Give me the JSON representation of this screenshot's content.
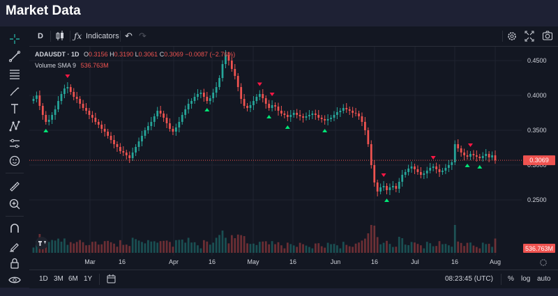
{
  "page": {
    "title": "Market Data"
  },
  "toolbar": {
    "interval": "D",
    "indicators_label": "Indicators"
  },
  "legend": {
    "symbol": "ADAUSDT · 1D",
    "open_label": "O",
    "open": "0.3156",
    "high_label": "H",
    "high": "0.3190",
    "low_label": "L",
    "low": "0.3061",
    "close_label": "C",
    "close": "0.3069",
    "change": "−0.0087 (−2.76%)",
    "volume_label": "Volume SMA 9",
    "volume_value": "536.763M"
  },
  "price_axis": {
    "labels": [
      "0.4500",
      "0.4000",
      "0.3500",
      "0.3000",
      "0.2500"
    ],
    "last_price": "0.3069",
    "volume_badge": "536.763M"
  },
  "time_axis": {
    "labels": [
      "Mar",
      "16",
      "Apr",
      "16",
      "May",
      "16",
      "Jun",
      "16",
      "Jul",
      "16",
      "Aug"
    ]
  },
  "bottom_bar": {
    "ranges": [
      "1D",
      "3M",
      "6M",
      "1Y"
    ],
    "clock": "08:23:45 (UTC)",
    "percent": "%",
    "log": "log",
    "auto": "auto"
  },
  "colors": {
    "up": "#26a69a",
    "down": "#ef5350",
    "buy_signal": "#00e676",
    "sell_signal": "#ff1744",
    "background": "#131722"
  },
  "chart_data": {
    "type": "candlestick",
    "symbol": "ADAUSDT",
    "interval": "1D",
    "ylim": [
      0.225,
      0.47
    ],
    "x_ticks": [
      "Mar",
      "16",
      "Apr",
      "16",
      "May",
      "16",
      "Jun",
      "16",
      "Jul",
      "16",
      "Aug"
    ],
    "close": [
      0.395,
      0.4,
      0.385,
      0.372,
      0.362,
      0.365,
      0.372,
      0.38,
      0.392,
      0.402,
      0.41,
      0.412,
      0.405,
      0.398,
      0.395,
      0.388,
      0.382,
      0.378,
      0.372,
      0.368,
      0.362,
      0.358,
      0.352,
      0.348,
      0.342,
      0.336,
      0.33,
      0.326,
      0.32,
      0.318,
      0.314,
      0.31,
      0.318,
      0.326,
      0.334,
      0.342,
      0.35,
      0.356,
      0.362,
      0.37,
      0.378,
      0.374,
      0.368,
      0.36,
      0.352,
      0.348,
      0.354,
      0.362,
      0.372,
      0.38,
      0.388,
      0.392,
      0.398,
      0.402,
      0.404,
      0.398,
      0.392,
      0.396,
      0.404,
      0.412,
      0.425,
      0.445,
      0.458,
      0.45,
      0.438,
      0.428,
      0.412,
      0.395,
      0.385,
      0.382,
      0.386,
      0.392,
      0.398,
      0.402,
      0.396,
      0.388,
      0.382,
      0.386,
      0.384,
      0.378,
      0.374,
      0.372,
      0.369,
      0.372,
      0.375,
      0.372,
      0.37,
      0.368,
      0.37,
      0.372,
      0.374,
      0.372,
      0.368,
      0.366,
      0.364,
      0.366,
      0.368,
      0.372,
      0.376,
      0.378,
      0.382,
      0.38,
      0.378,
      0.375,
      0.374,
      0.37,
      0.362,
      0.35,
      0.33,
      0.3,
      0.275,
      0.262,
      0.268,
      0.27,
      0.264,
      0.268,
      0.27,
      0.266,
      0.276,
      0.286,
      0.29,
      0.295,
      0.298,
      0.294,
      0.29,
      0.286,
      0.288,
      0.292,
      0.296,
      0.298,
      0.294,
      0.29,
      0.292,
      0.296,
      0.3,
      0.304,
      0.33,
      0.324,
      0.318,
      0.314,
      0.312,
      0.316,
      0.314,
      0.312,
      0.31,
      0.313,
      0.316,
      0.311,
      0.314,
      0.3069
    ],
    "volume_sma9": "536.763M"
  }
}
